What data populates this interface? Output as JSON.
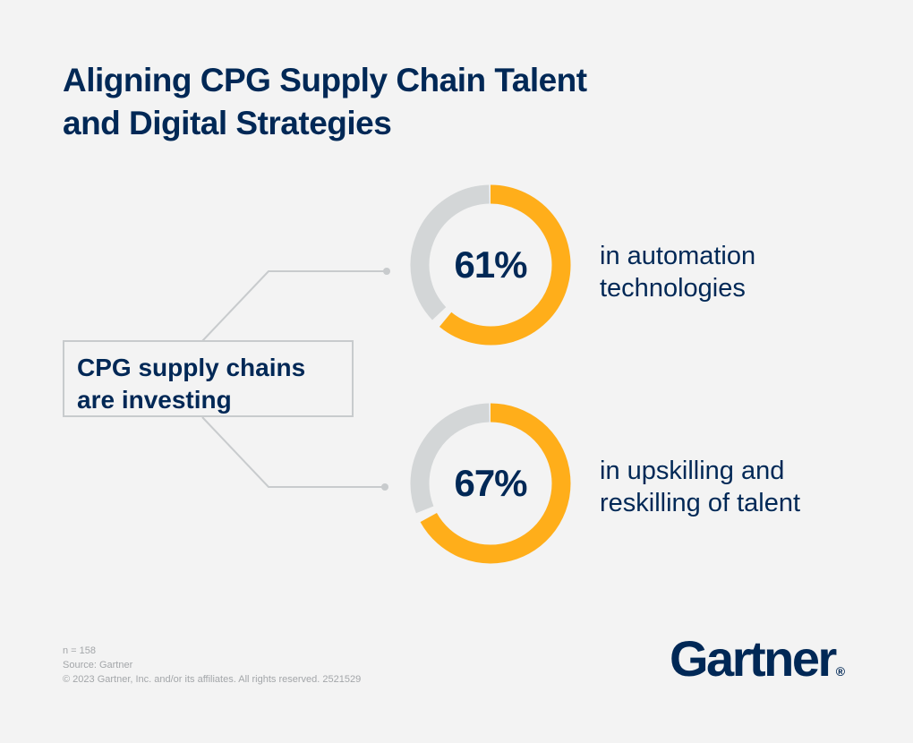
{
  "title": {
    "line1": "Aligning CPG Supply Chain Talent",
    "line2": "and Digital Strategies"
  },
  "callout": {
    "line1": "CPG supply chains",
    "line2": "are investing"
  },
  "chart_data": {
    "type": "pie",
    "subtype": "donut",
    "items": [
      {
        "value": 61,
        "label": "61%",
        "desc_line1": "in automation",
        "desc_line2": "technologies"
      },
      {
        "value": 67,
        "label": "67%",
        "desc_line1": "in upskilling and",
        "desc_line2": "reskilling of talent"
      }
    ],
    "max": 100
  },
  "colors": {
    "filled": "#ffae1a",
    "remainder": "#d3d6d7",
    "text": "#002856",
    "connector": "#c8cbcd"
  },
  "footnotes": {
    "n": "n = 158",
    "source": "Source: Gartner",
    "copyright": "© 2023 Gartner, Inc. and/or its affiliates. All rights reserved. 2521529"
  },
  "logo": {
    "text": "Gartner",
    "reg": "®"
  }
}
